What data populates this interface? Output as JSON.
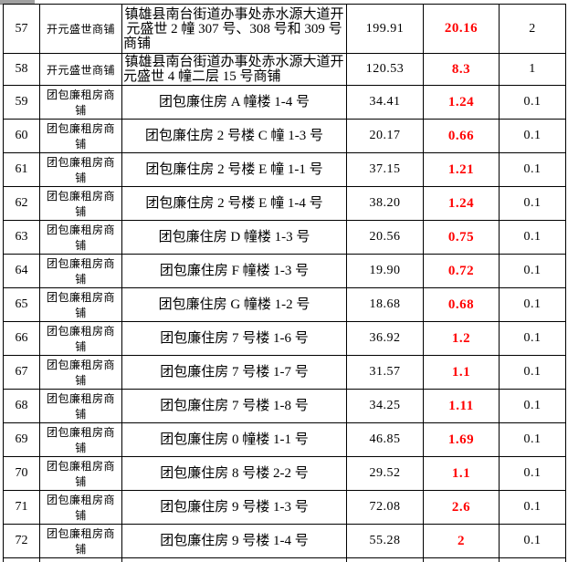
{
  "colors": {
    "value_red": "#ff0000",
    "text_black": "#000000",
    "border_black": "#000000",
    "corner_bar_gray": "#a0a0a0"
  },
  "table": {
    "column_keys": [
      "no",
      "name",
      "address",
      "area",
      "value",
      "rate"
    ],
    "rows": [
      {
        "no": "57",
        "name": "开元盛世商铺",
        "address": "镇雄县南台街道办事处赤水源大道开元盛世 2 幢 307 号、308 号和 309 号商铺",
        "area": "199.91",
        "value": "20.16",
        "rate": "2",
        "wrap": true
      },
      {
        "no": "58",
        "name": "开元盛世商铺",
        "address": "镇雄县南台街道办事处赤水源大道开元盛世 4 幢二层 15 号商铺",
        "area": "120.53",
        "value": "8.3",
        "rate": "1",
        "wrap": true
      },
      {
        "no": "59",
        "name": "团包廉租房商铺",
        "address": "团包廉住房 A 幢楼 1-4 号",
        "area": "34.41",
        "value": "1.24",
        "rate": "0.1"
      },
      {
        "no": "60",
        "name": "团包廉租房商铺",
        "address": "团包廉住房 2 号楼 C 幢 1-3 号",
        "area": "20.17",
        "value": "0.66",
        "rate": "0.1"
      },
      {
        "no": "61",
        "name": "团包廉租房商铺",
        "address": "团包廉住房 2 号楼 E 幢 1-1 号",
        "area": "37.15",
        "value": "1.21",
        "rate": "0.1"
      },
      {
        "no": "62",
        "name": "团包廉租房商铺",
        "address": "团包廉住房 2 号楼 E 幢 1-4 号",
        "area": "38.20",
        "value": "1.24",
        "rate": "0.1"
      },
      {
        "no": "63",
        "name": "团包廉租房商铺",
        "address": "团包廉住房 D 幢楼 1-3 号",
        "area": "20.56",
        "value": "0.75",
        "rate": "0.1"
      },
      {
        "no": "64",
        "name": "团包廉租房商铺",
        "address": "团包廉住房 F 幢楼 1-3 号",
        "area": "19.90",
        "value": "0.72",
        "rate": "0.1"
      },
      {
        "no": "65",
        "name": "团包廉租房商铺",
        "address": "团包廉住房 G 幢楼 1-2 号",
        "area": "18.68",
        "value": "0.68",
        "rate": "0.1"
      },
      {
        "no": "66",
        "name": "团包廉租房商铺",
        "address": "团包廉住房 7 号楼 1-6 号",
        "area": "36.92",
        "value": "1.2",
        "rate": "0.1"
      },
      {
        "no": "67",
        "name": "团包廉租房商铺",
        "address": "团包廉住房 7 号楼 1-7 号",
        "area": "31.57",
        "value": "1.1",
        "rate": "0.1"
      },
      {
        "no": "68",
        "name": "团包廉租房商铺",
        "address": "团包廉住房 7 号楼 1-8 号",
        "area": "34.25",
        "value": "1.11",
        "rate": "0.1"
      },
      {
        "no": "69",
        "name": "团包廉租房商铺",
        "address": "团包廉住房 0 幢楼 1-1 号",
        "area": "46.85",
        "value": "1.69",
        "rate": "0.1"
      },
      {
        "no": "70",
        "name": "团包廉租房商铺",
        "address": "团包廉住房 8 号楼 2-2 号",
        "area": "29.52",
        "value": "1.1",
        "rate": "0.1"
      },
      {
        "no": "71",
        "name": "团包廉租房商铺",
        "address": "团包廉住房 9 号楼 1-3 号",
        "area": "72.08",
        "value": "2.6",
        "rate": "0.1"
      },
      {
        "no": "72",
        "name": "团包廉租房商铺",
        "address": "团包廉住房 9 号楼 1-4 号",
        "area": "55.28",
        "value": "2",
        "rate": "0.1"
      }
    ]
  }
}
